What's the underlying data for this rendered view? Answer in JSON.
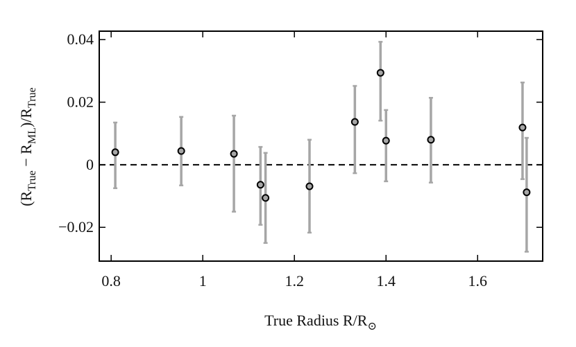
{
  "chart_data": {
    "type": "scatter",
    "x_label_parts": [
      "True Radius R/R",
      "⊙"
    ],
    "y_label_parts": [
      "(R",
      "True",
      " − R",
      "ML",
      ")/R",
      "True"
    ],
    "x": [
      0.809,
      0.953,
      1.068,
      1.126,
      1.137,
      1.233,
      1.332,
      1.388,
      1.4,
      1.498,
      1.698,
      1.707
    ],
    "values": [
      0.004,
      0.0044,
      0.0035,
      -0.0064,
      -0.0106,
      -0.0069,
      0.0137,
      0.0294,
      0.0077,
      0.008,
      0.0119,
      -0.0088
    ],
    "error_plus": [
      0.0095,
      0.0109,
      0.0122,
      0.0121,
      0.0144,
      0.0149,
      0.0115,
      0.0099,
      0.0098,
      0.0134,
      0.0144,
      0.0174
    ],
    "error_minus": [
      0.0115,
      0.011,
      0.0185,
      0.0128,
      0.0144,
      0.0148,
      0.0164,
      0.0153,
      0.013,
      0.0137,
      0.0165,
      0.019
    ],
    "color": "#000000",
    "error_color": "#a6a6a6",
    "reference_line": 0,
    "xlim": [
      0.774,
      1.742
    ],
    "ylim": [
      -0.0308,
      0.0427
    ],
    "xticks": [
      0.8,
      1,
      1.2,
      1.4,
      1.6
    ],
    "yticks": [
      {
        "value": -0.02,
        "label": "−0.02"
      },
      0,
      0.02,
      0.04
    ]
  }
}
